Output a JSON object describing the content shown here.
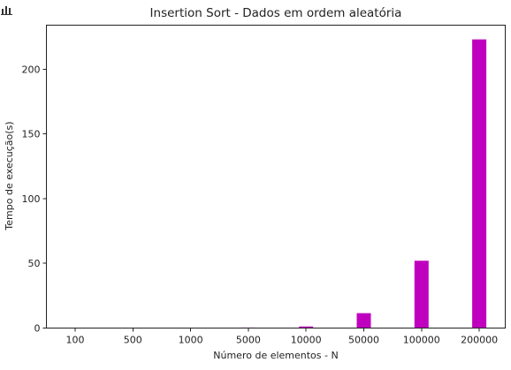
{
  "toolbar": {
    "icon": "bar-chart-icon"
  },
  "chart_data": {
    "type": "bar",
    "title": "Insertion Sort - Dados em ordem aleatória",
    "xlabel": "Número de elementos - N",
    "ylabel": "Tempo de execução(s)",
    "categories": [
      "100",
      "500",
      "1000",
      "5000",
      "10000",
      "50000",
      "100000",
      "200000"
    ],
    "values": [
      0.0,
      0.01,
      0.05,
      0.4,
      1.2,
      11.5,
      52,
      223
    ],
    "ylim": [
      0,
      234
    ],
    "yticks": [
      0,
      50,
      100,
      150,
      200
    ],
    "bar_color": "#bf00bf",
    "grid": false
  }
}
